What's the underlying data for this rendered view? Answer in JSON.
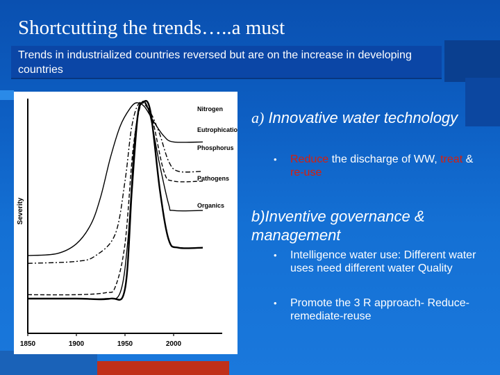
{
  "slide": {
    "title": "Shortcutting the trends…..a must",
    "subtitle": "Trends in industrialized countries reversed but  are on the increase in developing countries"
  },
  "right": {
    "section_a": {
      "prefix": "a)",
      "heading": " Innovative water technology"
    },
    "bullet_a1": {
      "w1": "Reduce",
      "t1": " the discharge of WW,",
      "w2": "treat",
      "t2": " & ",
      "w3": "re-use"
    },
    "section_b": {
      "heading": "b)Inventive governance & management"
    },
    "bullet_b1": "Intelligence water use: Different water uses need different water Quality",
    "bullet_b2": "Promote the 3 R approach- Reduce-remediate-reuse",
    "bullet_glyph": "•"
  },
  "colors": {
    "highlight_red": "#d81e0c",
    "subtitle_bg": "#0b46a6"
  },
  "chart_data": {
    "type": "line",
    "ylabel": "Severity",
    "xlabel": "",
    "x_ticks": [
      1850,
      1900,
      1950,
      2000
    ],
    "xlim": [
      1850,
      2050
    ],
    "ylim": [
      0,
      1
    ],
    "series": [
      {
        "name": "Nitrogen",
        "style": "solid",
        "points": [
          [
            1850,
            0.22
          ],
          [
            1880,
            0.23
          ],
          [
            1900,
            0.28
          ],
          [
            1915,
            0.38
          ],
          [
            1925,
            0.52
          ],
          [
            1935,
            0.72
          ],
          [
            1945,
            0.88
          ],
          [
            1955,
            0.97
          ],
          [
            1962,
            1.0
          ],
          [
            1970,
            0.98
          ],
          [
            1980,
            0.9
          ],
          [
            1990,
            0.83
          ],
          [
            2000,
            0.8
          ],
          [
            2030,
            0.8
          ]
        ]
      },
      {
        "name": "Eutrophication",
        "style": "dashdot",
        "points": [
          [
            1850,
            0.18
          ],
          [
            1900,
            0.19
          ],
          [
            1920,
            0.22
          ],
          [
            1940,
            0.33
          ],
          [
            1950,
            0.6
          ],
          [
            1957,
            0.88
          ],
          [
            1965,
            1.0
          ],
          [
            1975,
            0.96
          ],
          [
            1985,
            0.85
          ],
          [
            1995,
            0.7
          ],
          [
            2005,
            0.65
          ],
          [
            2030,
            0.65
          ]
        ]
      },
      {
        "name": "Phosphorus",
        "style": "dashed",
        "points": [
          [
            1850,
            0.02
          ],
          [
            1900,
            0.02
          ],
          [
            1930,
            0.03
          ],
          [
            1940,
            0.06
          ],
          [
            1950,
            0.28
          ],
          [
            1958,
            0.75
          ],
          [
            1965,
            0.97
          ],
          [
            1970,
            1.0
          ],
          [
            1978,
            0.92
          ],
          [
            1990,
            0.65
          ],
          [
            2000,
            0.6
          ],
          [
            2030,
            0.6
          ]
        ]
      },
      {
        "name": "Pathogens",
        "style": "solid",
        "points": [
          [
            1850,
            0.0
          ],
          [
            1900,
            0.0
          ],
          [
            1930,
            0.0
          ],
          [
            1945,
            0.03
          ],
          [
            1953,
            0.3
          ],
          [
            1960,
            0.82
          ],
          [
            1967,
            1.0
          ],
          [
            1975,
            0.95
          ],
          [
            1985,
            0.7
          ],
          [
            1995,
            0.48
          ],
          [
            2000,
            0.45
          ],
          [
            2030,
            0.45
          ]
        ]
      },
      {
        "name": "Organics",
        "style": "solid",
        "points": [
          [
            1850,
            0.0
          ],
          [
            1900,
            0.0
          ],
          [
            1935,
            0.0
          ],
          [
            1950,
            0.05
          ],
          [
            1957,
            0.55
          ],
          [
            1963,
            0.93
          ],
          [
            1968,
            1.0
          ],
          [
            1976,
            0.96
          ],
          [
            1986,
            0.55
          ],
          [
            1995,
            0.3
          ],
          [
            2005,
            0.26
          ],
          [
            2030,
            0.26
          ]
        ]
      }
    ]
  }
}
